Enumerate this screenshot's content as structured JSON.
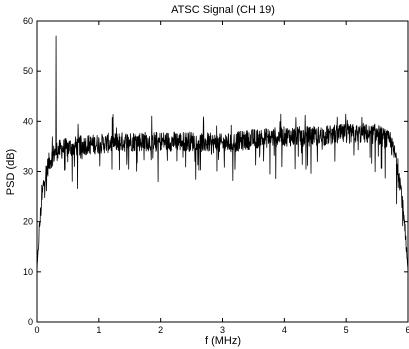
{
  "chart_data": {
    "type": "line",
    "title": "ATSC Signal (CH 19)",
    "xlabel": "f (MHz)",
    "ylabel": "PSD (dB)",
    "xlim": [
      0,
      6
    ],
    "ylim": [
      0,
      60
    ],
    "x_ticks": [
      0,
      1,
      2,
      3,
      4,
      5,
      6
    ],
    "y_ticks": [
      0,
      10,
      20,
      30,
      40,
      50,
      60
    ],
    "grid": false,
    "line_color": "#000000",
    "series": [
      {
        "pilot_peak": {
          "x": 0.31,
          "y": 57
        },
        "envelope": {
          "x": [
            0.0,
            0.03,
            0.06,
            0.1,
            0.15,
            0.2,
            0.25,
            0.3,
            0.4,
            0.6,
            0.8,
            1.0,
            1.5,
            2.0,
            2.5,
            3.0,
            3.5,
            4.0,
            4.5,
            5.0,
            5.2,
            5.5,
            5.7,
            5.8,
            5.85,
            5.9,
            5.95,
            6.0
          ],
          "y": [
            10,
            17,
            22,
            27,
            30,
            32,
            33,
            34,
            34.5,
            35,
            35.3,
            35.5,
            36,
            36,
            36,
            35.5,
            36.5,
            37,
            37,
            37.5,
            37.5,
            37.5,
            36,
            33,
            30,
            25,
            18,
            10
          ]
        }
      }
    ]
  }
}
